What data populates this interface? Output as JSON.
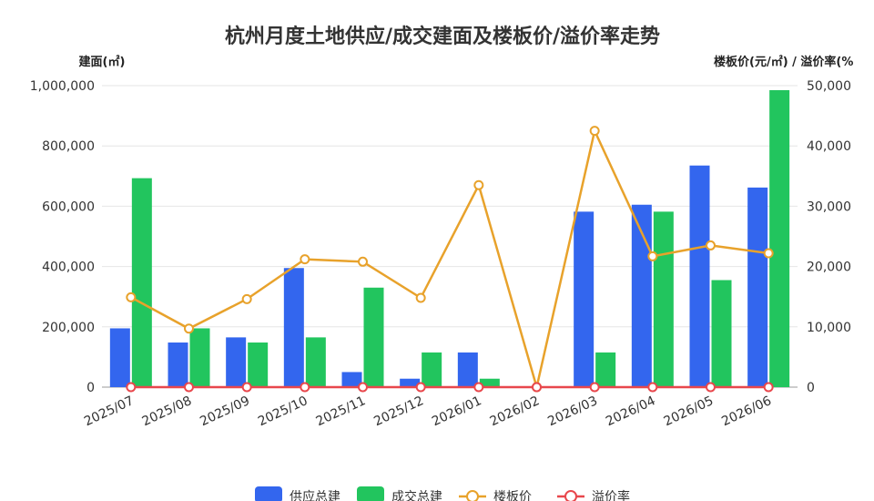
{
  "chart_data": {
    "type": "bar",
    "title": "杭州月度土地供应/成交建面及楼板价/溢价率走势",
    "ylabel_left": "建面(㎡)",
    "ylabel_right": "楼板价(元/㎡) / 溢价率(%",
    "categories": [
      "2025/07",
      "2025/08",
      "2025/09",
      "2025/10",
      "2025/11",
      "2025/12",
      "2026/01",
      "2026/02",
      "2026/03",
      "2026/04",
      "2026/05",
      "2026/06"
    ],
    "ylim_left": [
      0,
      1000000
    ],
    "ylim_right": [
      0,
      50000
    ],
    "yticks_left": [
      "0",
      "200,000",
      "400,000",
      "600,000",
      "800,000",
      "1,000,000"
    ],
    "yticks_right": [
      "0",
      "10,000",
      "20,000",
      "30,000",
      "40,000",
      "50,000"
    ],
    "grid": true,
    "legend_position": "bottom",
    "series": [
      {
        "name": "供应总建",
        "kind": "bar",
        "axis": "left",
        "color": "#3366ee",
        "values": [
          195000,
          148000,
          165000,
          395000,
          50000,
          28000,
          115000,
          0,
          582000,
          605000,
          735000,
          662000
        ]
      },
      {
        "name": "成交总建",
        "kind": "bar",
        "axis": "left",
        "color": "#22c55e",
        "values": [
          693000,
          195000,
          148000,
          165000,
          330000,
          115000,
          28000,
          0,
          115000,
          582000,
          355000,
          985000
        ]
      },
      {
        "name": "楼板价",
        "kind": "line",
        "axis": "right",
        "color": "#e8a22b",
        "values": [
          14900,
          9700,
          14600,
          21200,
          20800,
          14800,
          33500,
          0,
          42500,
          21700,
          23500,
          22200
        ]
      },
      {
        "name": "溢价率",
        "kind": "line",
        "axis": "right",
        "color": "#e8474c",
        "values": [
          0,
          0,
          0,
          0,
          0,
          0,
          0,
          0,
          0,
          0,
          0,
          0
        ]
      }
    ]
  }
}
